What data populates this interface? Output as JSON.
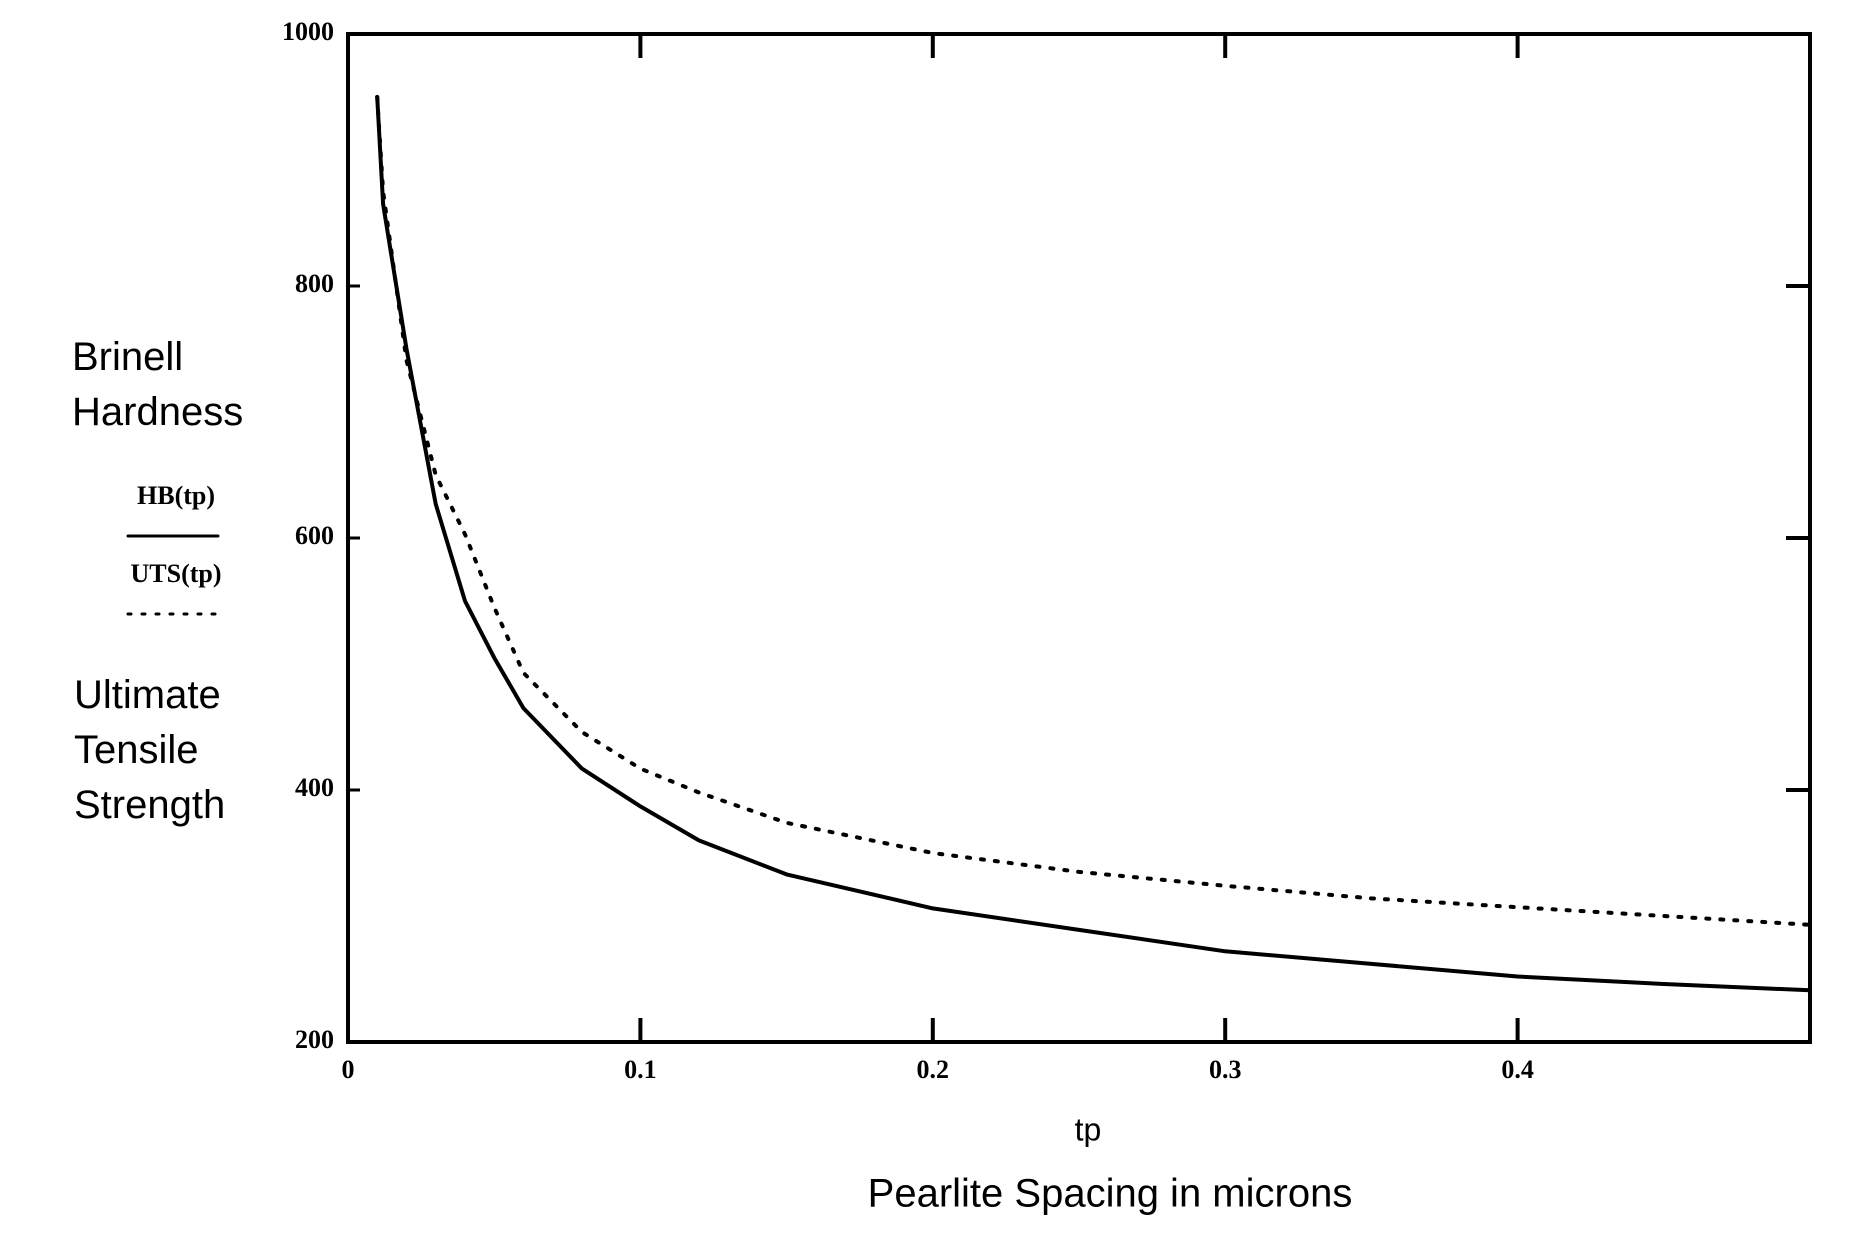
{
  "chart_data": {
    "type": "line",
    "x_label": "tp",
    "x_caption": "Pearlite Spacing in microns",
    "left_labels": [
      "Brinell Hardness",
      "Ultimate Tensile Strength"
    ],
    "x": [
      0.01,
      0.012,
      0.02,
      0.03,
      0.04,
      0.05,
      0.06,
      0.08,
      0.1,
      0.12,
      0.15,
      0.2,
      0.25,
      0.3,
      0.35,
      0.4,
      0.45,
      0.5
    ],
    "series": [
      {
        "name": "HB(tp)",
        "color": "#000000",
        "line_style": "solid",
        "values": [
          950,
          865,
          750,
          627,
          550,
          505,
          465,
          417,
          387,
          360,
          333,
          306,
          289,
          272,
          262,
          252,
          246,
          241
        ]
      },
      {
        "name": "UTS(tp)",
        "color": "#000000",
        "line_style": "dotted",
        "values": [
          950,
          875,
          741,
          650,
          603,
          545,
          493,
          446,
          417,
          398,
          374,
          350,
          335,
          324,
          314,
          307,
          300,
          293
        ]
      }
    ],
    "xlim": [
      0,
      0.5
    ],
    "xticks": [
      0,
      0.1,
      0.2,
      0.3,
      0.4
    ],
    "ylim": [
      200,
      1000
    ],
    "yticks": [
      200,
      400,
      600,
      800,
      1000
    ],
    "grid": false
  }
}
